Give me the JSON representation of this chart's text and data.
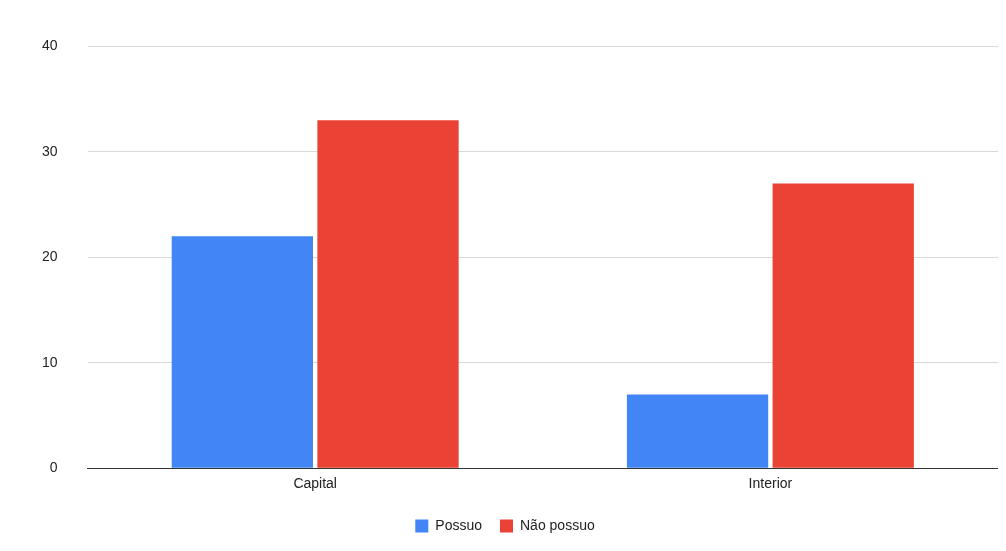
{
  "chart_data": {
    "type": "bar",
    "categories": [
      "Capital",
      "Interior"
    ],
    "series": [
      {
        "name": "Possuo",
        "color": "#4285f4",
        "values": [
          22,
          7
        ]
      },
      {
        "name": "Não possuo",
        "color": "#ea4335",
        "values": [
          33,
          27
        ]
      }
    ],
    "ylim": [
      0,
      40
    ],
    "yticks": [
      0,
      10,
      20,
      30,
      40
    ],
    "grid": "y",
    "legend": "bottom"
  }
}
